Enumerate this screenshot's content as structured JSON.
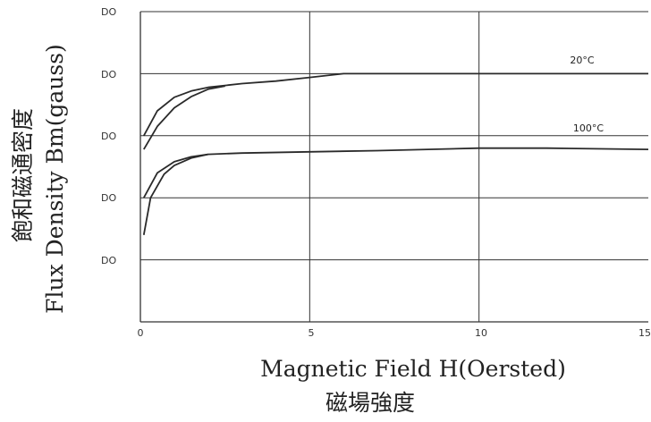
{
  "chart_data": {
    "type": "line",
    "xlabel": "Magnetic Field H(Oersted)",
    "xlabel_cjk": "磁場強度",
    "ylabel": "Flux Density Bm(gauss)",
    "ylabel_cjk": "飽和磁通密度",
    "xlim": [
      0,
      15
    ],
    "x_ticks": [
      "0",
      "5",
      "10",
      "15"
    ],
    "y_tick_labels": [
      "DO",
      "DO",
      "DO",
      "DO",
      "DO"
    ],
    "grid": true,
    "annotations": [
      "20°C",
      "100°C"
    ],
    "series": [
      {
        "name": "20°C upper",
        "x": [
          0.1,
          0.5,
          1,
          1.5,
          2,
          3,
          4,
          5,
          6,
          8,
          10,
          12,
          15
        ],
        "y": [
          4.0,
          4.4,
          4.62,
          4.72,
          4.78,
          4.84,
          4.88,
          4.94,
          5.0,
          5.0,
          5.0,
          5.0,
          5.0
        ]
      },
      {
        "name": "20°C lower",
        "x": [
          0.1,
          0.5,
          1,
          1.5,
          2,
          2.5
        ],
        "y": [
          3.78,
          4.15,
          4.45,
          4.63,
          4.75,
          4.8
        ]
      },
      {
        "name": "100°C upper",
        "x": [
          0.1,
          0.5,
          1,
          1.5,
          2,
          3,
          5,
          7,
          10,
          12,
          15
        ],
        "y": [
          3.0,
          3.4,
          3.58,
          3.66,
          3.7,
          3.72,
          3.74,
          3.76,
          3.8,
          3.8,
          3.78
        ]
      },
      {
        "name": "100°C lower",
        "x": [
          0.1,
          0.3,
          0.7,
          1,
          1.5,
          2
        ],
        "y": [
          2.4,
          3.0,
          3.38,
          3.52,
          3.64,
          3.7
        ]
      }
    ]
  }
}
